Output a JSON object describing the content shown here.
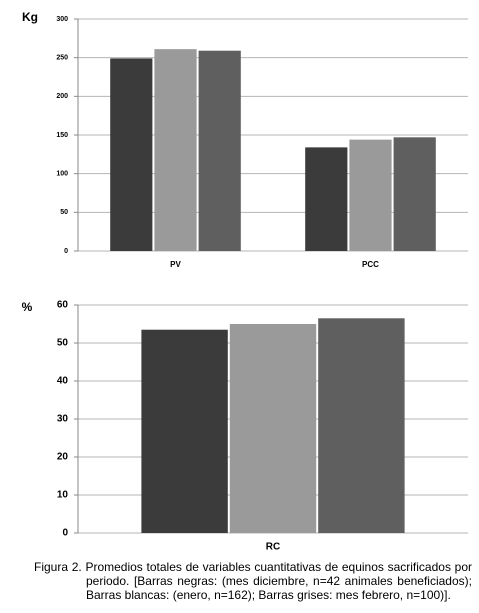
{
  "chart_data": [
    {
      "type": "bar",
      "y_label": "Kg",
      "categories": [
        "PV",
        "PCC"
      ],
      "series": [
        {
          "color": "#3b3b3b",
          "values": [
            249,
            134
          ]
        },
        {
          "color": "#9a9a9a",
          "values": [
            261,
            144
          ]
        },
        {
          "color": "#5f5f5f",
          "values": [
            259,
            147
          ]
        }
      ],
      "ylim": [
        0,
        300
      ],
      "yticks": [
        0,
        50,
        100,
        150,
        200,
        250,
        300
      ],
      "grid": true
    },
    {
      "type": "bar",
      "y_label": "%",
      "categories": [
        "RC"
      ],
      "series": [
        {
          "color": "#3b3b3b",
          "values": [
            53.5
          ]
        },
        {
          "color": "#9a9a9a",
          "values": [
            55
          ]
        },
        {
          "color": "#5f5f5f",
          "values": [
            56.5
          ]
        }
      ],
      "ylim": [
        0,
        60
      ],
      "yticks": [
        0,
        10,
        20,
        30,
        40,
        50,
        60
      ],
      "grid": true
    }
  ],
  "caption": "Figura 2. Promedios totales de variables cuantitativas de equinos sacrificados por periodo. [Barras negras: (mes diciembre, n=42 animales beneficiados); Barras blancas: (enero, n=162); Barras grises: mes febrero, n=100)]."
}
